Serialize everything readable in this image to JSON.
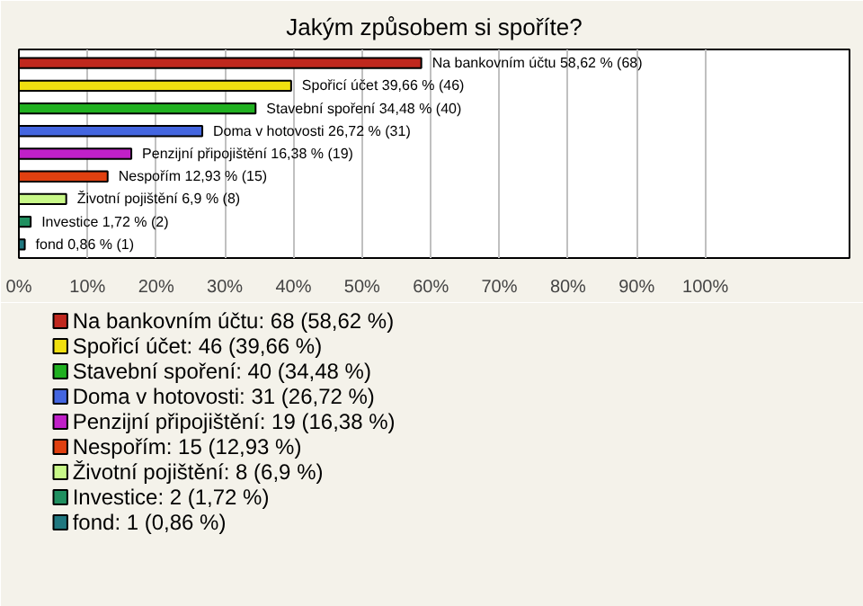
{
  "chart_data": {
    "type": "bar",
    "orientation": "horizontal",
    "title": "Jakým způsobem si spoříte?",
    "categories": [
      null,
      null,
      null,
      null,
      null,
      null,
      null,
      null,
      null
    ],
    "series": [
      {
        "name": "Na bankovním účtu: 68 (58,62 %)",
        "color": "#c0281e",
        "values": [
          58.62,
          null,
          null,
          null,
          null,
          null,
          null,
          null,
          null
        ],
        "value_labels": [
          "Na bankovním účtu 58,62 % (68)",
          null,
          null,
          null,
          null,
          null,
          null,
          null,
          null
        ]
      },
      {
        "name": "Spořicí účet: 46 (39,66 %)",
        "color": "#f0e010",
        "values": [
          null,
          39.66,
          null,
          null,
          null,
          null,
          null,
          null,
          null
        ],
        "value_labels": [
          null,
          "Spořicí účet 39,66 % (46)",
          null,
          null,
          null,
          null,
          null,
          null,
          null
        ]
      },
      {
        "name": "Stavební spoření: 40 (34,48 %)",
        "color": "#20b020",
        "values": [
          null,
          null,
          34.48,
          null,
          null,
          null,
          null,
          null,
          null
        ],
        "value_labels": [
          null,
          null,
          "Stavební spoření 34,48 % (40)",
          null,
          null,
          null,
          null,
          null,
          null
        ]
      },
      {
        "name": "Doma v hotovosti: 31 (26,72 %)",
        "color": "#4466e0",
        "values": [
          null,
          null,
          null,
          26.72,
          null,
          null,
          null,
          null,
          null
        ],
        "value_labels": [
          null,
          null,
          null,
          "Doma v hotovosti 26,72 % (31)",
          null,
          null,
          null,
          null,
          null
        ]
      },
      {
        "name": "Penzijní připojištění: 19 (16,38 %)",
        "color": "#c020c8",
        "values": [
          null,
          null,
          null,
          null,
          16.38,
          null,
          null,
          null,
          null
        ],
        "value_labels": [
          null,
          null,
          null,
          null,
          "Penzijní připojištění 16,38 % (19)",
          null,
          null,
          null,
          null
        ]
      },
      {
        "name": "Nespořím: 15 (12,93 %)",
        "color": "#e04010",
        "values": [
          null,
          null,
          null,
          null,
          null,
          12.93,
          null,
          null,
          null
        ],
        "value_labels": [
          null,
          null,
          null,
          null,
          null,
          "Nespořím 12,93 % (15)",
          null,
          null,
          null
        ]
      },
      {
        "name": "Životní pojištění: 8 (6,9 %)",
        "color": "#c8f888",
        "values": [
          null,
          null,
          null,
          null,
          null,
          null,
          6.9,
          null,
          null
        ],
        "value_labels": [
          null,
          null,
          null,
          null,
          null,
          null,
          "Životní pojištění 6,9 % (8)",
          null,
          null
        ]
      },
      {
        "name": "Investice: 2 (1,72 %)",
        "color": "#209060",
        "values": [
          null,
          null,
          null,
          null,
          null,
          null,
          null,
          1.72,
          null
        ],
        "value_labels": [
          null,
          null,
          null,
          null,
          null,
          null,
          null,
          "Investice 1,72 % (2)",
          null
        ]
      },
      {
        "name": "fond: 1 (0,86 %)",
        "color": "#207880",
        "values": [
          null,
          null,
          null,
          null,
          null,
          null,
          null,
          null,
          0.86
        ],
        "value_labels": [
          null,
          null,
          null,
          null,
          null,
          null,
          null,
          null,
          "fond 0,86 % (1)"
        ]
      }
    ],
    "xlim": [
      0,
      121
    ],
    "xticks": [
      {
        "value": 0,
        "label": "0%"
      },
      {
        "value": 10,
        "label": "10%"
      },
      {
        "value": 20,
        "label": "20%"
      },
      {
        "value": 30,
        "label": "30%"
      },
      {
        "value": 40,
        "label": "40%"
      },
      {
        "value": 50,
        "label": "50%"
      },
      {
        "value": 60,
        "label": "60%"
      },
      {
        "value": 70,
        "label": "70%"
      },
      {
        "value": 80,
        "label": "80%"
      },
      {
        "value": 90,
        "label": "90%"
      },
      {
        "value": 100,
        "label": "100%"
      }
    ],
    "grid": "x",
    "legend": "bottom",
    "tick_labels": "x"
  }
}
